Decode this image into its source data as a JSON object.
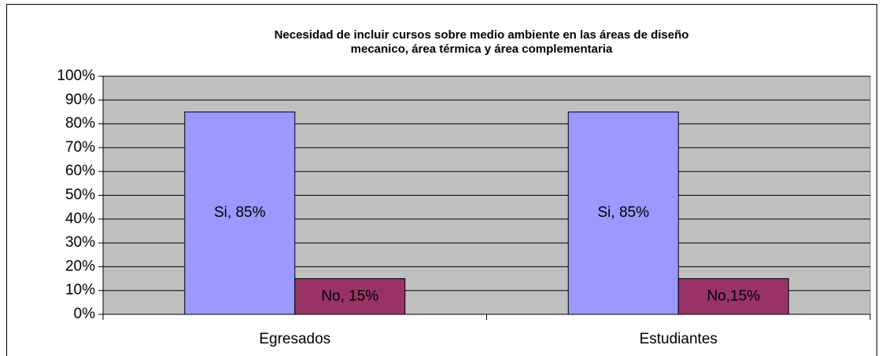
{
  "chart_data": {
    "type": "bar",
    "title": [
      "Necesidad de incluir cursos sobre medio ambiente en las áreas de diseño",
      "mecanico, área térmica y área complementaria"
    ],
    "categories": [
      "Egresados",
      "Estudiantes"
    ],
    "series": [
      {
        "name": "Si",
        "color": "#9999ff",
        "values": [
          85,
          85
        ],
        "value_labels": [
          "Si, 85%",
          "Si, 85%"
        ]
      },
      {
        "name": "No",
        "color": "#993366",
        "values": [
          15,
          15
        ],
        "value_labels": [
          "No, 15%",
          "No,15%"
        ]
      }
    ],
    "ylim": [
      0,
      100
    ],
    "yticks": [
      {
        "value": 0,
        "label": "0%"
      },
      {
        "value": 10,
        "label": "10%"
      },
      {
        "value": 20,
        "label": "20%"
      },
      {
        "value": 30,
        "label": "30%"
      },
      {
        "value": 40,
        "label": "40%"
      },
      {
        "value": 50,
        "label": "50%"
      },
      {
        "value": 60,
        "label": "60%"
      },
      {
        "value": 70,
        "label": "70%"
      },
      {
        "value": 80,
        "label": "80%"
      },
      {
        "value": 90,
        "label": "90%"
      },
      {
        "value": 100,
        "label": "100%"
      }
    ],
    "grid": true,
    "plot_background": "#c0c0c0"
  }
}
